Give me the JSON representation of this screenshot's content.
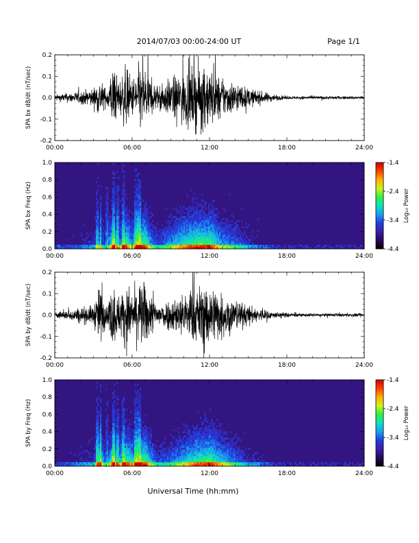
{
  "header": {
    "date_range": "2014/07/03  00:00-24:00 UT",
    "page": "Page 1/1"
  },
  "xaxis_title": "Universal Time (hh:mm)",
  "colorbar": {
    "label": "Log₁₀ Power",
    "ticks": [
      "-1.4",
      "-2.4",
      "-3.4",
      "-4.4"
    ],
    "colors": [
      "#000000",
      "#2a0a5a",
      "#3a1fa8",
      "#2040e0",
      "#1aa0f0",
      "#10e0c0",
      "#30f040",
      "#d0f020",
      "#ffb000",
      "#ff4000",
      "#d00000"
    ]
  },
  "chart_data": [
    {
      "type": "line",
      "title": "",
      "ylabel": "SPA bx dB/dt (nT/sec)",
      "xlabel": "",
      "x_ticks": [
        "00:00",
        "06:00",
        "12:00",
        "18:00",
        "24:00"
      ],
      "y_ticks": [
        "0.2",
        "0.1",
        "0.0",
        "-0.1",
        "-0.2"
      ],
      "xlim": [
        0,
        24
      ],
      "ylim": [
        -0.2,
        0.2
      ],
      "series": [
        {
          "x": [
            0,
            1,
            2,
            3,
            3.5,
            4,
            4.5,
            5,
            5.5,
            6,
            6.5,
            7,
            7.5,
            8,
            9,
            10,
            11,
            12,
            13,
            14,
            15,
            16,
            17,
            18,
            19,
            20,
            21,
            22,
            23,
            24
          ],
          "values": [
            0.02,
            0.03,
            0.04,
            0.06,
            0.12,
            0.05,
            0.2,
            0.1,
            0.2,
            0.12,
            0.2,
            0.2,
            0.11,
            0.08,
            0.12,
            0.17,
            0.2,
            0.2,
            0.12,
            0.1,
            0.06,
            0.04,
            0.02,
            0.01,
            0.01,
            0.01,
            0.01,
            0.01,
            0.01,
            0.01
          ]
        }
      ]
    },
    {
      "type": "heatmap",
      "title": "",
      "ylabel": "SPA bx Freq (Hz)",
      "xlabel": "",
      "x_ticks": [
        "00:00",
        "06:00",
        "12:00",
        "18:00",
        "24:00"
      ],
      "y_ticks": [
        "1.0",
        "0.8",
        "0.6",
        "0.4",
        "0.2",
        "0.0"
      ],
      "xlim": [
        0,
        24
      ],
      "ylim": [
        0,
        1.0
      ],
      "zlim": [
        -4.4,
        -1.4
      ]
    },
    {
      "type": "line",
      "title": "",
      "ylabel": "SPA by dB/dt (nT/sec)",
      "xlabel": "",
      "x_ticks": [
        "00:00",
        "06:00",
        "12:00",
        "18:00",
        "24:00"
      ],
      "y_ticks": [
        "0.2",
        "0.1",
        "0.0",
        "-0.1",
        "-0.2"
      ],
      "xlim": [
        0,
        24
      ],
      "ylim": [
        -0.2,
        0.2
      ],
      "series": [
        {
          "x": [
            0,
            1,
            2,
            3,
            3.5,
            4,
            4.5,
            5,
            5.5,
            6,
            6.5,
            7,
            7.5,
            8,
            9,
            10,
            11,
            12,
            13,
            14,
            15,
            16,
            17,
            18,
            19,
            20,
            21,
            22,
            23,
            24
          ],
          "values": [
            0.02,
            0.03,
            0.05,
            0.06,
            0.2,
            0.05,
            0.2,
            0.12,
            0.2,
            0.15,
            0.2,
            0.2,
            0.12,
            0.08,
            0.1,
            0.14,
            0.18,
            0.2,
            0.14,
            0.1,
            0.06,
            0.04,
            0.02,
            0.015,
            0.01,
            0.01,
            0.01,
            0.01,
            0.01,
            0.01
          ]
        }
      ]
    },
    {
      "type": "heatmap",
      "title": "",
      "ylabel": "SPA by Freq (Hz)",
      "xlabel": "",
      "x_ticks": [
        "00:00",
        "06:00",
        "12:00",
        "18:00",
        "24:00"
      ],
      "y_ticks": [
        "1.0",
        "0.8",
        "0.6",
        "0.4",
        "0.2",
        "0.0"
      ],
      "xlim": [
        0,
        24
      ],
      "ylim": [
        0,
        1.0
      ],
      "zlim": [
        -4.4,
        -1.4
      ]
    }
  ]
}
